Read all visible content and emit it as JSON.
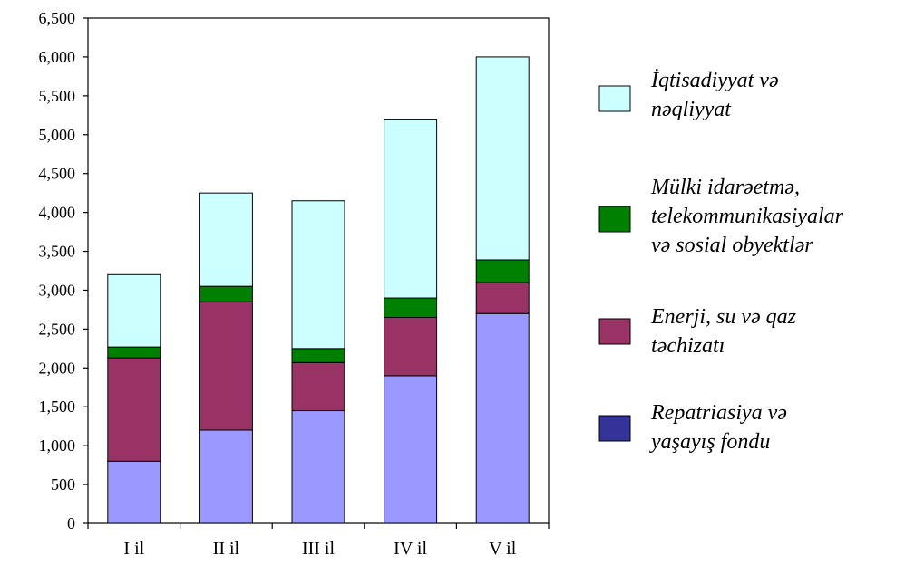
{
  "chart_data": {
    "type": "bar",
    "stacked": true,
    "categories": [
      "I il",
      "II il",
      "III il",
      "IV il",
      "V il"
    ],
    "ylim": [
      0,
      6500
    ],
    "yticks": [
      0,
      500,
      1000,
      1500,
      2000,
      2500,
      3000,
      3500,
      4000,
      4500,
      5000,
      5500,
      6000,
      6500
    ],
    "ytick_labels": [
      "0",
      "500",
      "1,000",
      "1,500",
      "2,000",
      "2,500",
      "3,000",
      "3,500",
      "4,000",
      "4,500",
      "5,000",
      "5,500",
      "6,000",
      "6,500"
    ],
    "grid": false,
    "legend_position": "right",
    "series": [
      {
        "name": "Repatriasiya və yaşayış fondu",
        "legend_lines": [
          "Repatriasiya və",
          "yaşayış fondu"
        ],
        "fill_color": "#9999ff",
        "legend_color": "#333399",
        "values": [
          800,
          1200,
          1450,
          1900,
          2700
        ]
      },
      {
        "name": "Enerji, su və qaz təchizatı",
        "legend_lines": [
          "Enerji, su və qaz",
          "təchizatı"
        ],
        "fill_color": "#993366",
        "legend_color": "#993366",
        "values": [
          1330,
          1650,
          620,
          750,
          400
        ]
      },
      {
        "name": "Mülki idarəetmə, telekommunikasiyalar və sosial obyektlər",
        "legend_lines": [
          "Mülki idarəetmə,",
          "telekommunikasiyalar",
          "və sosial obyektlər"
        ],
        "fill_color": "#008000",
        "legend_color": "#008000",
        "values": [
          140,
          200,
          180,
          250,
          290
        ]
      },
      {
        "name": "İqtisadiyyat və nəqliyyat",
        "legend_lines": [
          "İqtisadiyyat və",
          "nəqliyyat"
        ],
        "fill_color": "#ccffff",
        "legend_color": "#ccffff",
        "values": [
          930,
          1200,
          1900,
          2300,
          2610
        ]
      }
    ]
  }
}
